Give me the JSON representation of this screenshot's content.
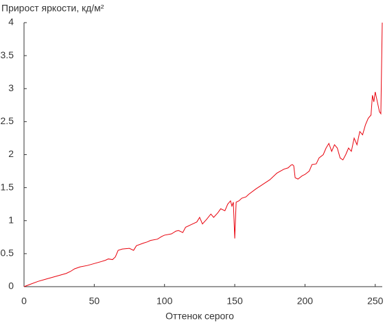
{
  "chart_data": {
    "type": "line",
    "title": "Прирост яркости, кд/м²",
    "x_label": "Оттенок серого",
    "x": [
      0,
      5,
      10,
      15,
      20,
      25,
      30,
      33,
      36,
      40,
      45,
      50,
      55,
      58,
      60,
      63,
      65,
      67,
      70,
      75,
      78,
      80,
      85,
      88,
      90,
      95,
      98,
      100,
      105,
      108,
      110,
      113,
      115,
      120,
      123,
      125,
      127,
      130,
      133,
      135,
      138,
      140,
      143,
      145,
      147,
      148,
      149,
      150,
      151,
      153,
      155,
      158,
      160,
      165,
      170,
      175,
      180,
      185,
      188,
      190,
      191,
      192,
      193,
      195,
      198,
      200,
      203,
      205,
      208,
      210,
      213,
      215,
      217,
      219,
      221,
      223,
      225,
      227,
      229,
      231,
      233,
      235,
      237,
      239,
      241,
      243,
      245,
      247,
      248,
      249,
      250,
      251,
      252,
      253,
      254,
      255
    ],
    "series": [
      {
        "name": "Прирост яркости",
        "color": "#e8000b",
        "values": [
          0,
          0.04,
          0.08,
          0.11,
          0.14,
          0.17,
          0.2,
          0.23,
          0.27,
          0.3,
          0.32,
          0.35,
          0.38,
          0.4,
          0.42,
          0.41,
          0.45,
          0.55,
          0.57,
          0.58,
          0.55,
          0.62,
          0.66,
          0.68,
          0.7,
          0.72,
          0.76,
          0.78,
          0.8,
          0.84,
          0.85,
          0.82,
          0.9,
          0.95,
          0.98,
          1.05,
          0.95,
          1.02,
          1.1,
          1.05,
          1.12,
          1.18,
          1.15,
          1.25,
          1.3,
          1.22,
          1.28,
          0.73,
          1.28,
          1.3,
          1.34,
          1.36,
          1.4,
          1.48,
          1.55,
          1.62,
          1.72,
          1.78,
          1.8,
          1.84,
          1.85,
          1.83,
          1.65,
          1.63,
          1.68,
          1.7,
          1.75,
          1.85,
          1.86,
          1.95,
          2.0,
          2.1,
          2.17,
          2.05,
          2.15,
          2.1,
          1.95,
          1.92,
          2.0,
          2.1,
          2.05,
          2.25,
          2.15,
          2.35,
          2.3,
          2.45,
          2.55,
          2.6,
          2.9,
          2.8,
          2.95,
          2.85,
          2.75,
          2.65,
          2.62,
          4.0
        ]
      }
    ],
    "xlim": [
      0,
      255
    ],
    "ylim": [
      0,
      4
    ],
    "xticks": [
      0,
      50,
      100,
      150,
      200,
      250
    ],
    "yticks": [
      0,
      0.5,
      1,
      1.5,
      2,
      2.5,
      3,
      3.5,
      4
    ]
  }
}
